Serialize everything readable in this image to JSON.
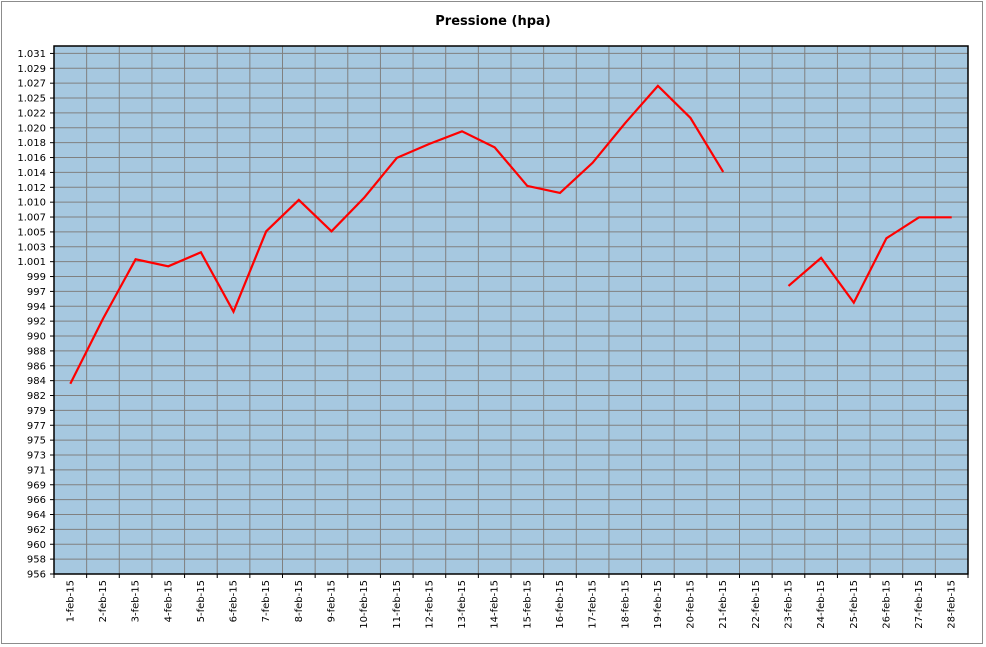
{
  "chart_data": {
    "type": "line",
    "title": "Pressione (hpa)",
    "xlabel": "",
    "ylabel": "",
    "categories": [
      "1-feb-15",
      "2-feb-15",
      "3-feb-15",
      "4-feb-15",
      "5-feb-15",
      "6-feb-15",
      "7-feb-15",
      "8-feb-15",
      "9-feb-15",
      "10-feb-15",
      "11-feb-15",
      "12-feb-15",
      "13-feb-15",
      "14-feb-15",
      "15-feb-15",
      "16-feb-15",
      "17-feb-15",
      "18-feb-15",
      "19-feb-15",
      "20-feb-15",
      "21-feb-15",
      "22-feb-15",
      "23-feb-15",
      "24-feb-15",
      "25-feb-15",
      "26-feb-15",
      "27-feb-15",
      "28-feb-15"
    ],
    "y_tick_labels": [
      "956",
      "958",
      "960",
      "962",
      "964",
      "966",
      "969",
      "971",
      "973",
      "975",
      "977",
      "979",
      "982",
      "984",
      "986",
      "988",
      "990",
      "992",
      "994",
      "997",
      "999",
      "1.001",
      "1.003",
      "1.005",
      "1.007",
      "1.010",
      "1.012",
      "1.014",
      "1.016",
      "1.018",
      "1.020",
      "1.022",
      "1.025",
      "1.027",
      "1.029",
      "1.031"
    ],
    "ylim": [
      956,
      1031.5
    ],
    "grid": true,
    "legend": "none",
    "series": [
      {
        "color": "#ff0000",
        "values": [
          983.2,
          992.5,
          1001.0,
          1000.0,
          1002.0,
          993.5,
          1005.0,
          1009.5,
          1005.0,
          1009.8,
          1015.5,
          1017.5,
          1019.3,
          1017.0,
          1011.5,
          1010.5,
          1014.8,
          1020.5,
          1025.8,
          1021.2,
          1013.5,
          null,
          997.2,
          1001.2,
          994.8,
          1004.0,
          1007.0,
          1007.0
        ]
      }
    ]
  },
  "colors": {
    "plot_background": "#a6c8e0",
    "grid": "#808080",
    "line": "#ff0000"
  }
}
